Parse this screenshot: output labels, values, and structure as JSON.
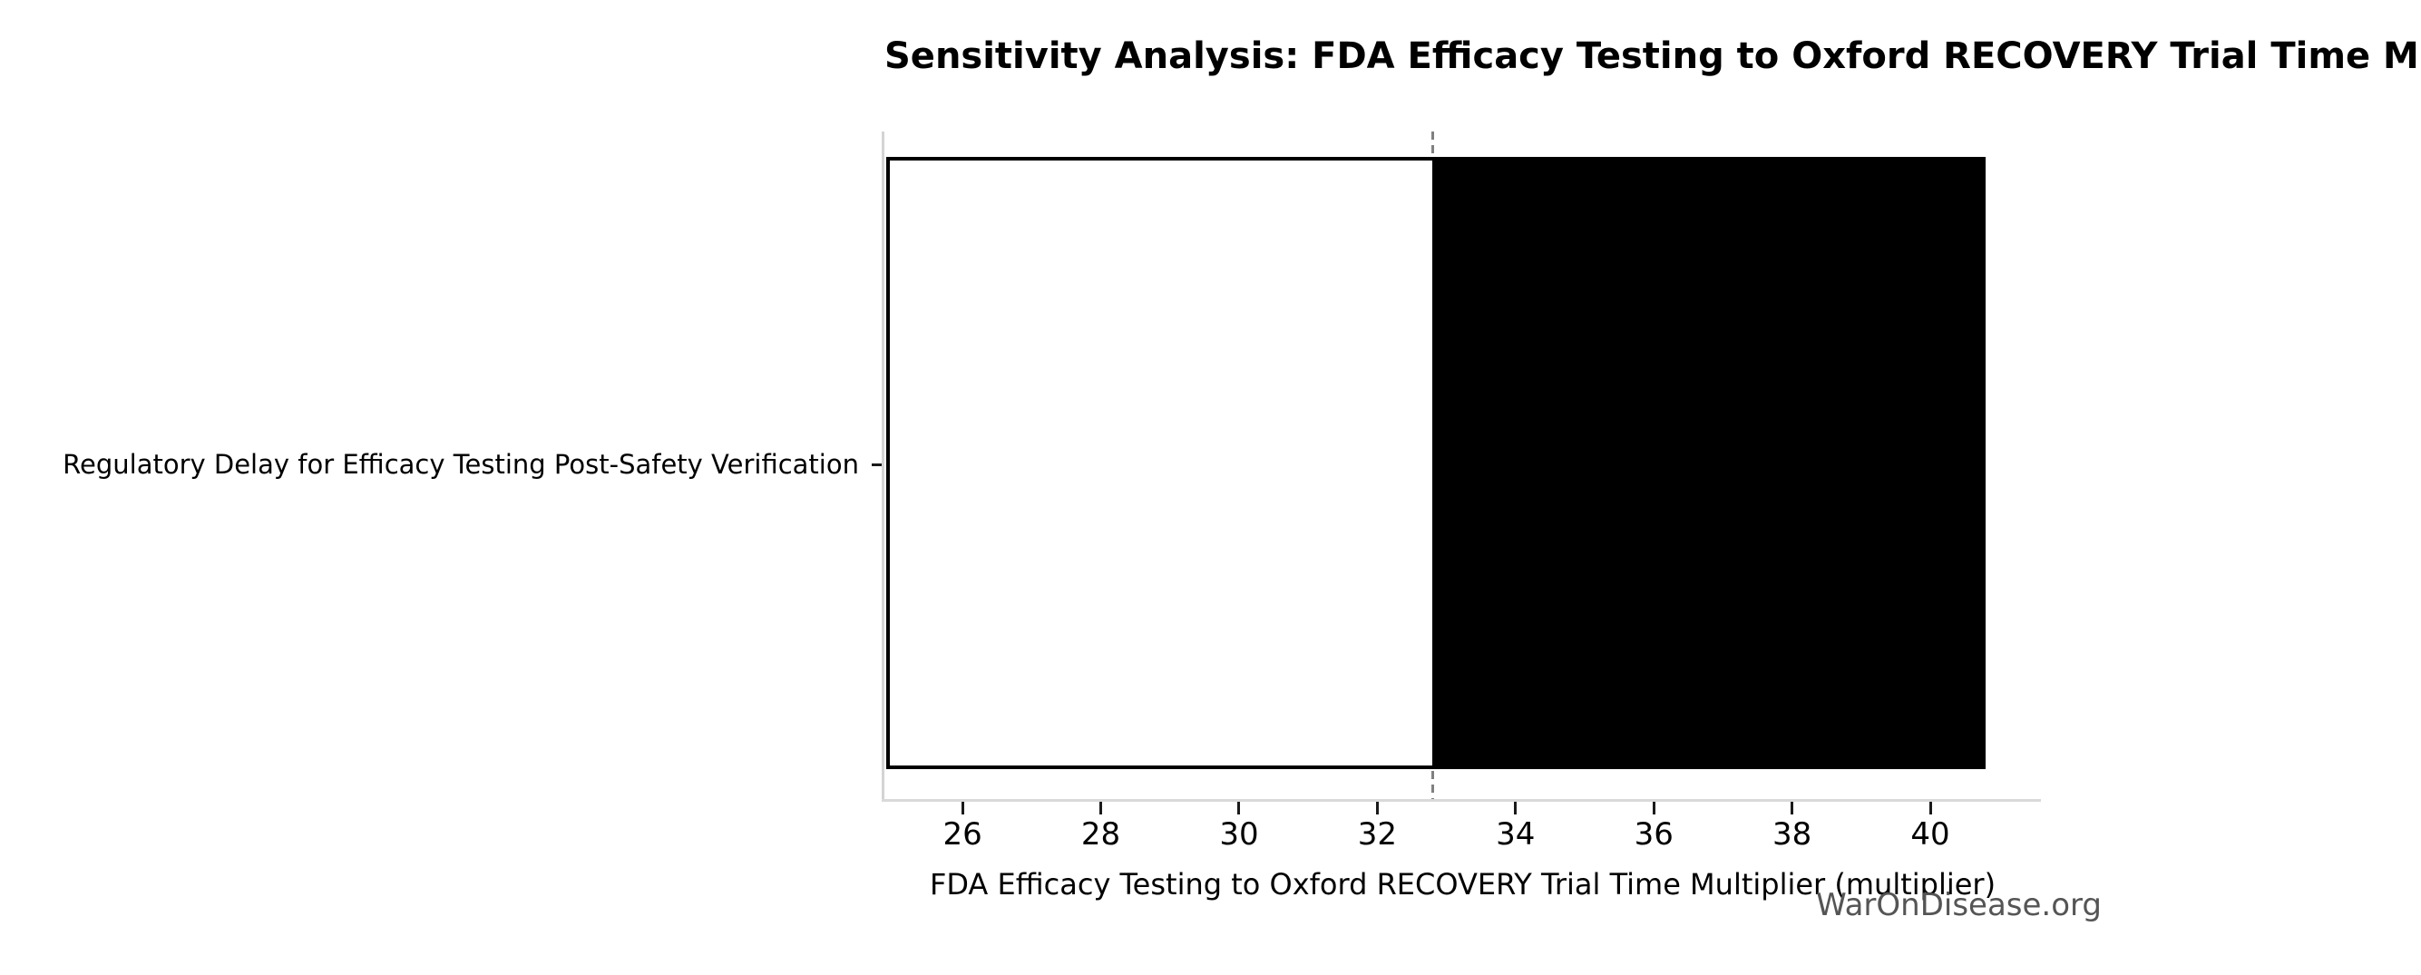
{
  "watermark": "WarOnDisease.org",
  "chart_data": {
    "type": "bar",
    "orientation": "horizontal",
    "title": "Sensitivity Analysis: FDA Efficacy Testing to Oxford RECOVERY Trial Time Multiplier",
    "xlabel": "FDA Efficacy Testing to Oxford RECOVERY Trial Time Multiplier (multiplier)",
    "ylabel": "",
    "categories": [
      "Regulatory Delay for Efficacy Testing Post-Safety Verification"
    ],
    "series": [
      {
        "name": "low-range-segment",
        "from": 24.9,
        "to": 32.8,
        "fill": "#ffffff"
      },
      {
        "name": "high-range-segment",
        "from": 32.8,
        "to": 40.8,
        "fill": "#000000"
      }
    ],
    "baseline": 32.8,
    "xticks": [
      26,
      28,
      30,
      32,
      34,
      36,
      38,
      40
    ],
    "xlim": [
      24.87,
      41.6
    ],
    "grid": false,
    "legend_position": "none",
    "colors": {
      "bar_edge": "#000000",
      "bar_low_fill": "#ffffff",
      "bar_high_fill": "#000000",
      "baseline_dash": "#808080",
      "spine": "#d4d4d4",
      "tick_mark": "#1a1a1a",
      "text": "#000000",
      "watermark": "#555555"
    }
  }
}
